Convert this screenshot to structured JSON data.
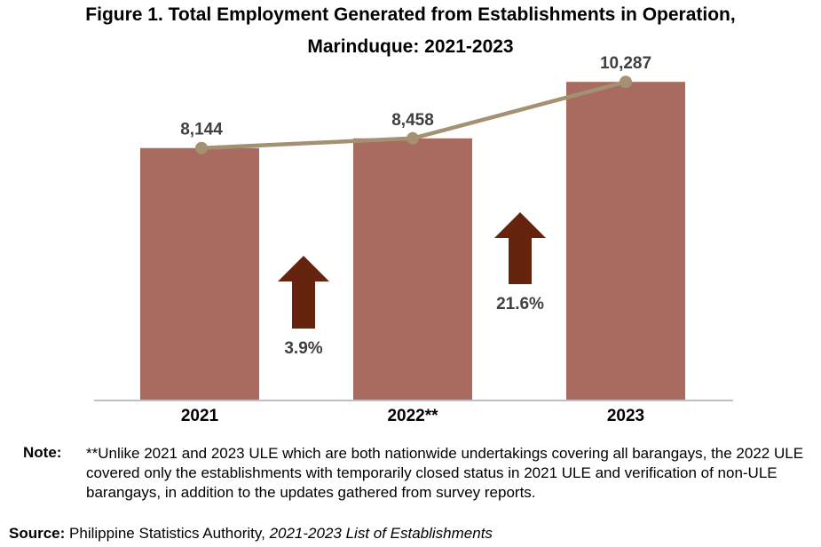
{
  "chart_data": {
    "type": "bar",
    "title": "Figure 1. Total Employment Generated from Establishments in Operation,",
    "subtitle": "Marinduque: 2021-2023",
    "categories": [
      "2021",
      "2022**",
      "2023"
    ],
    "values": [
      8144,
      8458,
      10287
    ],
    "value_labels": [
      "8,144",
      "8,458",
      "10,287"
    ],
    "line_values": [
      8144,
      8458,
      10287
    ],
    "changes": [
      {
        "label": "3.9%"
      },
      {
        "label": "21.6%"
      }
    ],
    "ylim": [
      0,
      11500
    ],
    "grid": false,
    "legend": "none",
    "colors": {
      "bar": "#a96a5f",
      "line": "#a39171",
      "arrow": "#66240e",
      "label": "#404040",
      "axis": "#bfbfbf"
    }
  },
  "note": {
    "label": "Note:",
    "text": "**Unlike 2021 and 2023 ULE which are both nationwide undertakings covering all barangays, the 2022 ULE covered only the establishments with temporarily closed status in 2021 ULE and verification of non-ULE barangays, in addition to the updates gathered from survey reports."
  },
  "source": {
    "label": "Source:",
    "agency": "Philippine Statistics Authority,",
    "publication": "2021-2023 List of Establishments"
  }
}
